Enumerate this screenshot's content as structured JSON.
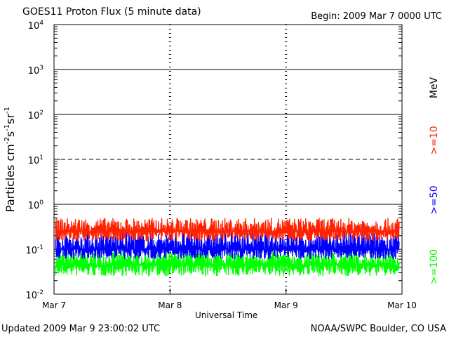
{
  "header": {
    "title": "GOES11 Proton Flux (5 minute data)",
    "begin": "Begin: 2009 Mar 7 0000 UTC"
  },
  "footer": {
    "updated": "Updated 2009 Mar  9 23:00:02 UTC",
    "credit": "NOAA/SWPC Boulder, CO USA"
  },
  "chart_data": {
    "type": "line",
    "title": "GOES11 Proton Flux (5 minute data)",
    "xlabel": "Universal Time",
    "ylabel": "Particles cm⁻²s⁻¹sr⁻¹",
    "yscale": "log",
    "ylim": [
      0.01,
      10000
    ],
    "xlim": [
      "2009-03-07",
      "2009-03-10"
    ],
    "x_tick_labels": [
      "Mar 7",
      "Mar 8",
      "Mar 9",
      "Mar 10"
    ],
    "y_tick_labels": [
      {
        "base": "10",
        "exp": "-2"
      },
      {
        "base": "10",
        "exp": "-1"
      },
      {
        "base": "10",
        "exp": "0"
      },
      {
        "base": "10",
        "exp": "1"
      },
      {
        "base": "10",
        "exp": "2"
      },
      {
        "base": "10",
        "exp": "3"
      },
      {
        "base": "10",
        "exp": "4"
      }
    ],
    "unit_label": "MeV",
    "grid": true,
    "series": [
      {
        "name": ">=10",
        "color": "#ff2200",
        "approx_range": [
          0.15,
          0.5
        ],
        "typical": 0.25
      },
      {
        "name": ">=50",
        "color": "#0000ff",
        "approx_range": [
          0.06,
          0.25
        ],
        "typical": 0.1
      },
      {
        "name": ">=100",
        "color": "#00ff00",
        "approx_range": [
          0.025,
          0.09
        ],
        "typical": 0.045
      }
    ]
  }
}
